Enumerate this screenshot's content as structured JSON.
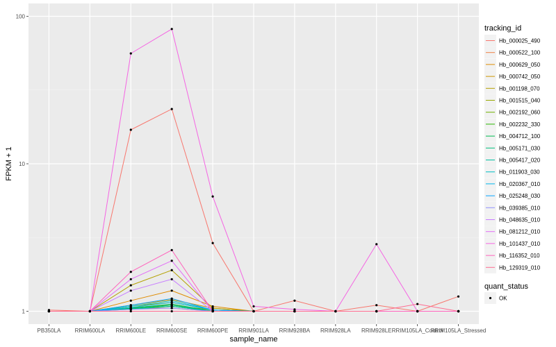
{
  "chart_data": {
    "type": "line",
    "title": "",
    "xlabel": "sample_name",
    "ylabel": "FPKM + 1",
    "y_scale": "log10",
    "ylim": [
      1,
      100
    ],
    "y_ticks": [
      1,
      10,
      100
    ],
    "y_tick_labels": [
      "1",
      "10",
      "100"
    ],
    "grid": true,
    "legend_position": "right",
    "categories": [
      "PB350LA",
      "RRIM600LA",
      "RRIM600LE",
      "RRIM600SE",
      "RRIM600PE",
      "RRIM901LA",
      "RRIM928BA",
      "RRIM928LA",
      "RRIM928LE",
      "RRIM105LA_Control",
      "RRIM105LA_Stressed"
    ],
    "series": [
      {
        "name": "Hb_000025_490",
        "color": "#F8766D",
        "values": [
          1.02,
          1,
          17,
          23.5,
          2.9,
          1,
          1.18,
          1,
          1.1,
          1,
          1.26
        ]
      },
      {
        "name": "Hb_000522_100",
        "color": "#EE8044",
        "values": [
          1,
          1,
          1.05,
          1.05,
          1,
          1,
          1,
          1,
          1,
          1,
          1
        ]
      },
      {
        "name": "Hb_000629_050",
        "color": "#DF8B00",
        "values": [
          1,
          1,
          1.18,
          1.38,
          1.08,
          1,
          1,
          1,
          1,
          1,
          1
        ]
      },
      {
        "name": "Hb_000742_050",
        "color": "#CC9600",
        "values": [
          1,
          1,
          1.1,
          1.2,
          1.05,
          1,
          1,
          1,
          1,
          1,
          1
        ]
      },
      {
        "name": "Hb_001198_070",
        "color": "#B4A000",
        "values": [
          1,
          1,
          1.5,
          1.9,
          1.05,
          1,
          1,
          1,
          1,
          1,
          1
        ]
      },
      {
        "name": "Hb_001515_040",
        "color": "#98A800",
        "values": [
          1,
          1,
          1.08,
          1.15,
          1.02,
          1,
          1,
          1,
          1,
          1,
          1
        ]
      },
      {
        "name": "Hb_002192_060",
        "color": "#71B000",
        "values": [
          1,
          1,
          1.06,
          1.1,
          1.02,
          1,
          1,
          1,
          1,
          1,
          1
        ]
      },
      {
        "name": "Hb_002232_330",
        "color": "#2BB600",
        "values": [
          1,
          1,
          1.04,
          1.08,
          1,
          1,
          1,
          1,
          1,
          1,
          1
        ]
      },
      {
        "name": "Hb_004712_100",
        "color": "#00BB4E",
        "values": [
          1,
          1,
          1.05,
          1.12,
          1,
          1,
          1,
          1,
          1,
          1,
          1
        ]
      },
      {
        "name": "Hb_005171_030",
        "color": "#00BF7D",
        "values": [
          1,
          1,
          1.04,
          1.1,
          1,
          1,
          1,
          1,
          1,
          1,
          1
        ]
      },
      {
        "name": "Hb_005417_020",
        "color": "#00C0A2",
        "values": [
          1,
          1,
          1.03,
          1.08,
          1,
          1,
          1,
          1,
          1,
          1,
          1
        ]
      },
      {
        "name": "Hb_011903_030",
        "color": "#00BFC4",
        "values": [
          1,
          1,
          1.08,
          1.18,
          1.02,
          1,
          1,
          1,
          1,
          1,
          1
        ]
      },
      {
        "name": "Hb_020367_010",
        "color": "#00B6EB",
        "values": [
          1,
          1,
          1.06,
          1.15,
          1.02,
          1,
          1,
          1,
          1,
          1,
          1
        ]
      },
      {
        "name": "Hb_025248_030",
        "color": "#06A4FF",
        "values": [
          1,
          1,
          1.1,
          1.22,
          1.02,
          1,
          1,
          1,
          1,
          1,
          1
        ]
      },
      {
        "name": "Hb_039385_010",
        "color": "#8F91FF",
        "values": [
          1,
          1,
          1.03,
          1.05,
          1,
          1,
          1,
          1,
          1,
          1,
          1
        ]
      },
      {
        "name": "Hb_048635_010",
        "color": "#C77CFF",
        "values": [
          1,
          1,
          1.38,
          1.65,
          1,
          1,
          1,
          1,
          1,
          1,
          1
        ]
      },
      {
        "name": "Hb_081212_010",
        "color": "#E26EF7",
        "values": [
          1,
          1,
          1.65,
          2.2,
          1,
          1,
          1,
          1,
          1,
          1,
          1
        ]
      },
      {
        "name": "Hb_101437_010",
        "color": "#F564E3",
        "values": [
          1,
          1,
          56,
          82,
          6,
          1.08,
          1.03,
          1,
          2.85,
          1,
          1
        ]
      },
      {
        "name": "Hb_116352_010",
        "color": "#FF62BC",
        "values": [
          1,
          1,
          1.85,
          2.6,
          1,
          1,
          1,
          1,
          1,
          1,
          1
        ]
      },
      {
        "name": "Hb_129319_010",
        "color": "#FF6C91",
        "values": [
          1,
          1,
          1,
          1,
          1,
          1,
          1,
          1,
          1,
          1.12,
          1
        ]
      }
    ],
    "legend_title": "tracking_id",
    "point_legend_title": "quant_status",
    "point_legend_items": [
      "OK"
    ],
    "point_color": "#000000"
  }
}
